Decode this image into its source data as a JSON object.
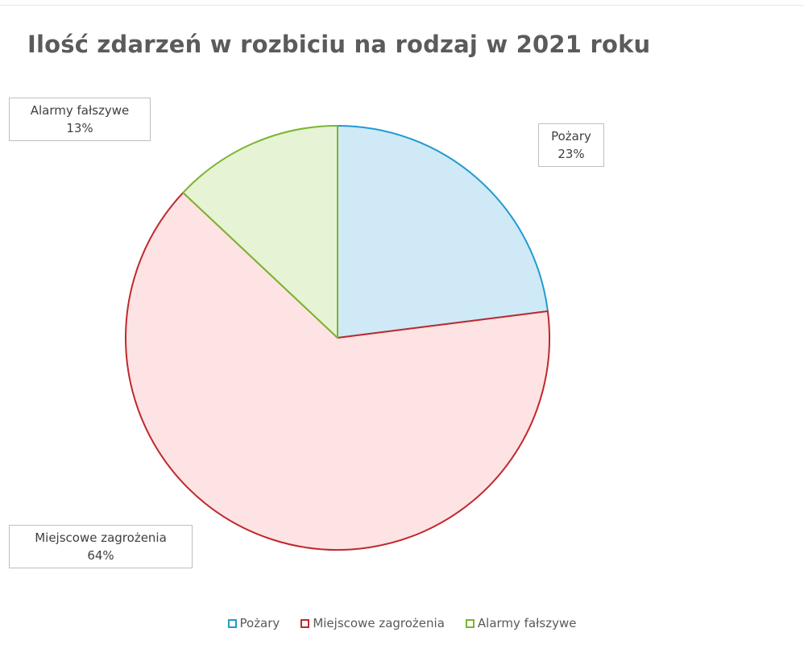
{
  "chart_data": {
    "type": "pie",
    "title": "Ilość zdarzeń w rozbiciu na rodzaj w 2021 roku",
    "slices": [
      {
        "label": "Pożary",
        "value": 23,
        "value_label": "23%",
        "color": "#1f9bd1",
        "fill": "#cfe9f7"
      },
      {
        "label": "Miejscowe zagrożenia",
        "value": 64,
        "value_label": "64%",
        "color": "#c0282d",
        "fill": "#fde3e3"
      },
      {
        "label": "Alarmy fałszywe",
        "value": 13,
        "value_label": "13%",
        "color": "#7ab52e",
        "fill": "#e6f3d4"
      }
    ],
    "legend_position": "bottom"
  }
}
